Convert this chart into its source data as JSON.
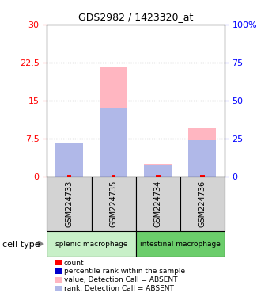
{
  "title": "GDS2982 / 1423320_at",
  "samples": [
    "GSM224733",
    "GSM224735",
    "GSM224734",
    "GSM224736"
  ],
  "groups": [
    {
      "label": "splenic macrophage",
      "indices": [
        0,
        1
      ],
      "color": "#c8f0c8"
    },
    {
      "label": "intestinal macrophage",
      "indices": [
        2,
        3
      ],
      "color": "#90ee90"
    }
  ],
  "value_absent": [
    5.2,
    21.5,
    2.5,
    9.5
  ],
  "rank_absent": [
    6.5,
    13.5,
    2.2,
    7.2
  ],
  "left_ylim": [
    0,
    30
  ],
  "right_ylim": [
    0,
    100
  ],
  "left_ticks": [
    0,
    7.5,
    15,
    22.5,
    30
  ],
  "right_ticks": [
    0,
    25,
    50,
    75,
    100
  ],
  "left_tick_labels": [
    "0",
    "7.5",
    "15",
    "22.5",
    "30"
  ],
  "right_tick_labels": [
    "0",
    "25",
    "50",
    "75",
    "100%"
  ],
  "color_value_absent": "#ffb6c1",
  "color_rank_absent": "#b0b8e8",
  "color_count": "#ff0000",
  "color_rank": "#0000cc",
  "bar_width": 0.35,
  "legend_items": [
    {
      "label": "count",
      "color": "#ff0000",
      "marker": "s"
    },
    {
      "label": "percentile rank within the sample",
      "color": "#0000cc",
      "marker": "s"
    },
    {
      "label": "value, Detection Call = ABSENT",
      "color": "#ffb6c1",
      "marker": "s"
    },
    {
      "label": "rank, Detection Call = ABSENT",
      "color": "#b0b8e8",
      "marker": "s"
    }
  ],
  "cell_type_label": "cell type"
}
